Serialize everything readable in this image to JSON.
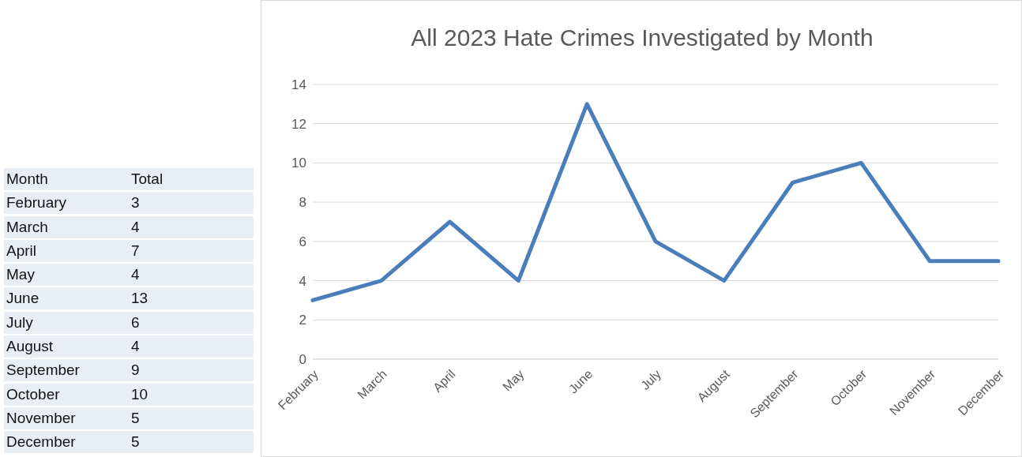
{
  "chart_data": [
    {
      "type": "other",
      "xlabel": "Month",
      "ylabel": "Total",
      "categories": [
        "February",
        "March",
        "April",
        "May",
        "June",
        "July",
        "August",
        "September",
        "October",
        "November",
        "December"
      ],
      "values": [
        3,
        4,
        7,
        4,
        13,
        6,
        4,
        9,
        10,
        5,
        5
      ],
      "data_labels": true
    },
    {
      "type": "line",
      "title": "All 2023 Hate Crimes Investigated by Month",
      "categories": [
        "February",
        "March",
        "April",
        "May",
        "June",
        "July",
        "August",
        "September",
        "October",
        "November",
        "December"
      ],
      "values": [
        3,
        4,
        7,
        4,
        13,
        6,
        4,
        9,
        10,
        5,
        5
      ],
      "color": "#4a7ebb",
      "ylim": [
        0,
        14
      ],
      "yticks": [
        0,
        2,
        4,
        6,
        8,
        10,
        12,
        14
      ],
      "grid": "y",
      "marker": "none",
      "line_style": "solid"
    }
  ]
}
